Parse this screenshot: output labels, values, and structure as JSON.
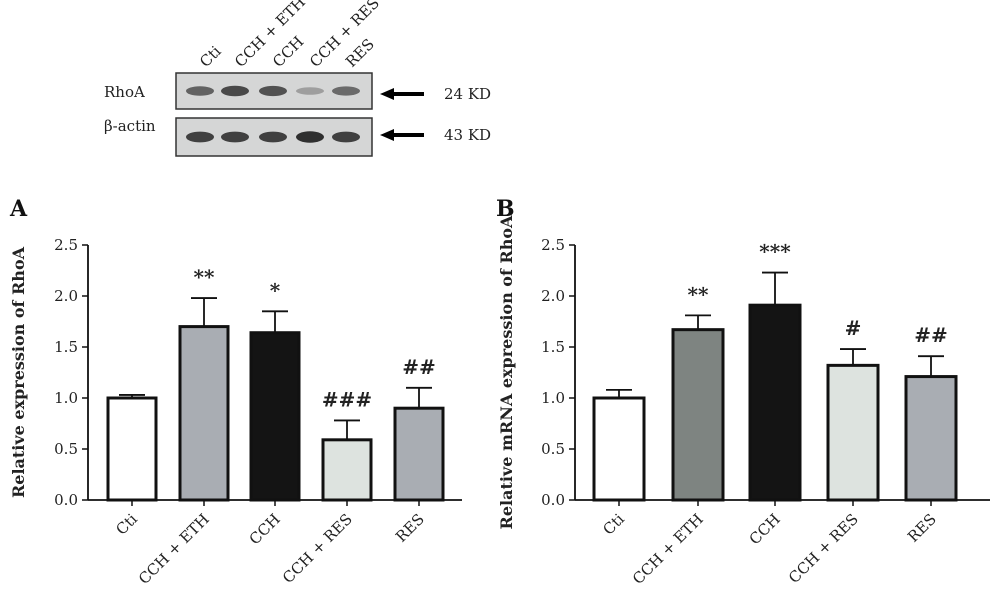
{
  "blot": {
    "lanes": [
      "Cti",
      "CCH + ETH",
      "CCH",
      "CCH + RES",
      "RES"
    ],
    "bands": [
      {
        "name": "RhoA",
        "size": "24 KD",
        "intensity": [
          0.6,
          0.75,
          0.7,
          0.25,
          0.55
        ]
      },
      {
        "name": "β-actin",
        "size": "43 KD",
        "intensity": [
          0.8,
          0.8,
          0.8,
          0.9,
          0.8
        ]
      }
    ]
  },
  "chart_data": [
    {
      "type": "bar",
      "panel": "A",
      "categories": [
        "Cti",
        "CCH + ETH",
        "CCH",
        "CCH + RES",
        "RES"
      ],
      "values": [
        1.0,
        1.7,
        1.64,
        0.59,
        0.9
      ],
      "errors": [
        0.03,
        0.28,
        0.21,
        0.19,
        0.2
      ],
      "significance": [
        "",
        "**",
        "*",
        "###",
        "##"
      ],
      "colors": [
        "#ffffff",
        "#a9adb3",
        "#141414",
        "#dde3df",
        "#a9adb3"
      ],
      "ylabel": "Relative expression of RhoA",
      "ylim": [
        0,
        2.5
      ],
      "yticks": [
        "0.0",
        "0.5",
        "1.0",
        "1.5",
        "2.0",
        "2.5"
      ]
    },
    {
      "type": "bar",
      "panel": "B",
      "categories": [
        "Cti",
        "CCH + ETH",
        "CCH",
        "CCH + RES",
        "RES"
      ],
      "values": [
        1.0,
        1.67,
        1.91,
        1.32,
        1.21
      ],
      "errors": [
        0.08,
        0.14,
        0.32,
        0.16,
        0.2
      ],
      "significance": [
        "",
        "**",
        "***",
        "#",
        "##"
      ],
      "colors": [
        "#ffffff",
        "#7e8481",
        "#141414",
        "#dde3df",
        "#a9adb3"
      ],
      "ylabel": "Relative mRNA expression of RhoA",
      "ylim": [
        0,
        2.5
      ],
      "yticks": [
        "0.0",
        "0.5",
        "1.0",
        "1.5",
        "2.0",
        "2.5"
      ]
    }
  ]
}
